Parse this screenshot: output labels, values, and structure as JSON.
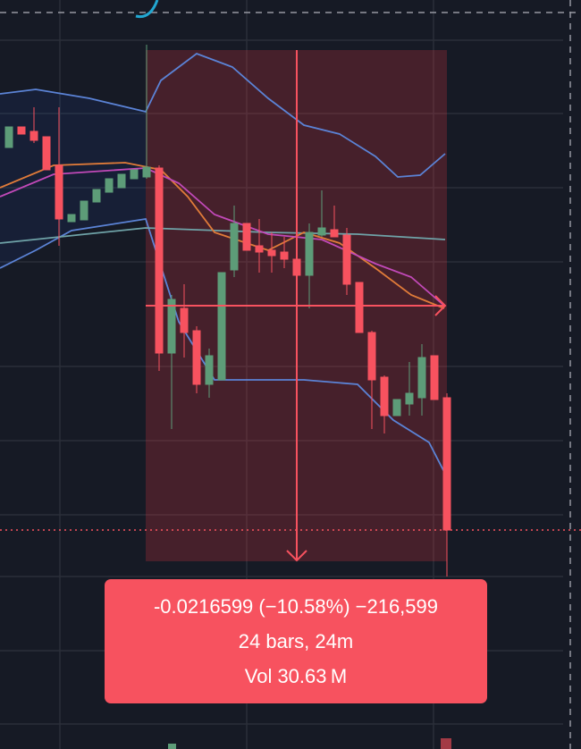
{
  "tooltip": {
    "change": "-0.0216599 (−10.58%) −216,599",
    "bars": "24 bars, 24m",
    "volume": "Vol 30.63 M"
  }
}
